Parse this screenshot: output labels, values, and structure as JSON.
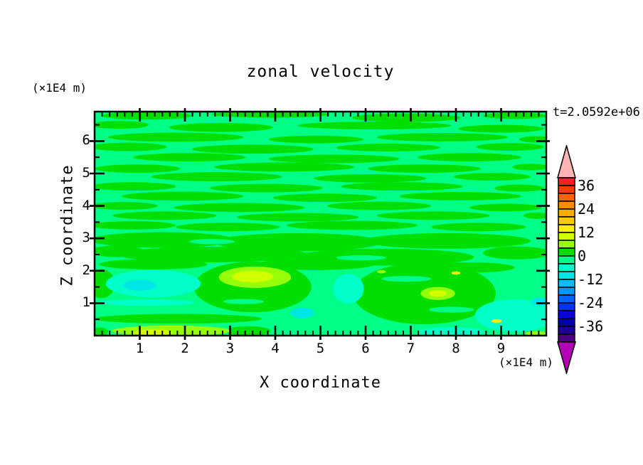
{
  "title": "zonal velocity",
  "time_annotation": "t=2.0592e+06",
  "axes": {
    "x": {
      "label": "X coordinate",
      "units": "(×1E4 m)",
      "min": 0,
      "max": 10,
      "major_ticks": [
        "1",
        "2",
        "3",
        "4",
        "5",
        "6",
        "7",
        "8",
        "9"
      ],
      "minor_step": 0.16667
    },
    "y": {
      "label": "Z coordinate",
      "units": "(×1E4 m)",
      "min": 0,
      "max": 6.907,
      "major_ticks": [
        "1",
        "2",
        "3",
        "4",
        "5",
        "6"
      ],
      "minor_step": 0.5
    }
  },
  "colorbar": {
    "over_color": "#FFB4B4",
    "under_color": "#B400B4",
    "segments": [
      "#FA1E28",
      "#FF3C00",
      "#FF6400",
      "#FF8C00",
      "#FFAA00",
      "#FFC800",
      "#FFF000",
      "#D2FF00",
      "#96FF0A",
      "#00DF00",
      "#00FF87",
      "#00FFC8",
      "#00E6E6",
      "#00BEFF",
      "#0096FF",
      "#0064FF",
      "#0032FA",
      "#0A00DC",
      "#0000AA",
      "#1E0096",
      "#4B0082"
    ],
    "labels": [
      {
        "text": "36",
        "boundary": 1
      },
      {
        "text": "24",
        "boundary": 4
      },
      {
        "text": "12",
        "boundary": 7
      },
      {
        "text": "0",
        "boundary": 10
      },
      {
        "text": "-12",
        "boundary": 13
      },
      {
        "text": "-24",
        "boundary": 16
      },
      {
        "text": "-36",
        "boundary": 19
      }
    ]
  },
  "chart_data": {
    "type": "heatmap",
    "title": "zonal velocity",
    "xlabel": "X coordinate",
    "ylabel": "Z coordinate",
    "x_units": "×1E4 m",
    "y_units": "×1E4 m",
    "time": "t=2.0592e+06",
    "xlim": [
      0,
      10
    ],
    "ylim": [
      0,
      6.907
    ],
    "contour_interval": 4,
    "labeled_levels": [
      36,
      24,
      12,
      0,
      -12,
      -24,
      -36
    ],
    "field_summary": "velocity mostly between -4 and +4; wavy horizontal alternating bands of 0..4 (green) and -4..0 (spring green) aloft; stronger negative cells (-12..-4 cyan) near z=1..2 at x=0.3-2.3, x=5.3-6.0, x=8.5-10; stronger positive cells (+4..+12 chartreuse/yellow) near z=1.8 at x=2.8-4.3 and near bottom boundary x=0.5-3, x=7.3-8",
    "palette": {
      "G": "#00DF00",
      "S": "#00FF87",
      "A": "#00FFC8",
      "C": "#00E6E6",
      "H": "#96FF0A",
      "Y": "#D2FF00",
      "YY": "#FFF000"
    },
    "background_level": "S",
    "features": [
      [
        "G",
        1.15,
        6.78,
        1.0,
        0.12
      ],
      [
        "G",
        3.9,
        6.82,
        1.3,
        0.1
      ],
      [
        "G",
        6.9,
        6.72,
        1.2,
        0.13
      ],
      [
        "G",
        9.3,
        6.78,
        0.7,
        0.1
      ],
      [
        "G",
        0.55,
        6.5,
        0.65,
        0.12
      ],
      [
        "G",
        2.8,
        6.42,
        1.15,
        0.14
      ],
      [
        "G",
        6.2,
        6.48,
        1.7,
        0.12
      ],
      [
        "G",
        9.0,
        6.38,
        0.95,
        0.12
      ],
      [
        "G",
        1.8,
        6.12,
        1.5,
        0.14
      ],
      [
        "G",
        4.9,
        6.05,
        1.05,
        0.12
      ],
      [
        "G",
        7.7,
        6.12,
        1.45,
        0.13
      ],
      [
        "G",
        9.8,
        6.05,
        0.4,
        0.1
      ],
      [
        "G",
        0.75,
        5.82,
        0.85,
        0.13
      ],
      [
        "G",
        3.5,
        5.75,
        1.35,
        0.14
      ],
      [
        "G",
        6.5,
        5.8,
        1.15,
        0.12
      ],
      [
        "G",
        9.2,
        5.82,
        0.75,
        0.12
      ],
      [
        "G",
        2.1,
        5.5,
        1.25,
        0.13
      ],
      [
        "G",
        5.3,
        5.45,
        1.45,
        0.13
      ],
      [
        "G",
        8.3,
        5.5,
        1.15,
        0.13
      ],
      [
        "G",
        0.95,
        5.15,
        0.95,
        0.13
      ],
      [
        "G",
        4.2,
        5.2,
        1.55,
        0.14
      ],
      [
        "G",
        7.3,
        5.15,
        1.25,
        0.13
      ],
      [
        "G",
        9.65,
        5.2,
        0.4,
        0.1
      ],
      [
        "G",
        2.7,
        4.9,
        1.45,
        0.14
      ],
      [
        "G",
        6.1,
        4.85,
        1.25,
        0.13
      ],
      [
        "G",
        8.8,
        4.9,
        0.85,
        0.12
      ],
      [
        "G",
        0.85,
        4.6,
        0.95,
        0.13
      ],
      [
        "G",
        3.8,
        4.55,
        1.25,
        0.13
      ],
      [
        "G",
        6.8,
        4.6,
        1.35,
        0.13
      ],
      [
        "G",
        9.4,
        4.55,
        0.55,
        0.11
      ],
      [
        "G",
        1.95,
        4.3,
        1.35,
        0.14
      ],
      [
        "G",
        5.1,
        4.25,
        1.15,
        0.13
      ],
      [
        "G",
        8.1,
        4.3,
        1.35,
        0.13
      ],
      [
        "G",
        0.65,
        4.0,
        0.75,
        0.12
      ],
      [
        "G",
        3.2,
        3.95,
        1.45,
        0.14
      ],
      [
        "G",
        6.3,
        4.0,
        1.15,
        0.13
      ],
      [
        "G",
        9.1,
        3.95,
        0.8,
        0.12
      ],
      [
        "G",
        1.55,
        3.7,
        1.15,
        0.13
      ],
      [
        "G",
        4.5,
        3.65,
        1.35,
        0.13
      ],
      [
        "G",
        7.5,
        3.7,
        1.25,
        0.13
      ],
      [
        "G",
        9.8,
        3.7,
        0.3,
        0.1
      ],
      [
        "G",
        0.85,
        3.4,
        0.95,
        0.13
      ],
      [
        "G",
        2.95,
        3.35,
        1.15,
        0.13
      ],
      [
        "G",
        5.7,
        3.4,
        1.45,
        0.14
      ],
      [
        "G",
        8.5,
        3.35,
        1.05,
        0.13
      ],
      [
        "G",
        1.5,
        2.95,
        1.6,
        0.24
      ],
      [
        "G",
        4.5,
        2.88,
        1.85,
        0.28
      ],
      [
        "G",
        7.8,
        2.92,
        1.85,
        0.24
      ],
      [
        "G",
        0.5,
        2.6,
        0.6,
        0.18
      ],
      [
        "G",
        2.6,
        2.5,
        2.1,
        0.24
      ],
      [
        "G",
        6.4,
        2.42,
        2.0,
        0.26
      ],
      [
        "G",
        9.35,
        2.55,
        0.75,
        0.2
      ],
      [
        "G",
        4.9,
        2.2,
        1.3,
        0.18
      ],
      [
        "G",
        1.3,
        2.2,
        1.2,
        0.16
      ],
      [
        "G",
        8.3,
        2.1,
        1.0,
        0.16
      ],
      [
        "G",
        3.5,
        1.5,
        1.3,
        0.78
      ],
      [
        "G",
        7.3,
        1.3,
        1.58,
        0.95
      ],
      [
        "G",
        1.85,
        0.52,
        1.85,
        0.15
      ],
      [
        "G",
        0.15,
        1.6,
        0.3,
        0.45
      ],
      [
        "G",
        3.4,
        0.14,
        0.5,
        0.15
      ],
      [
        "G",
        0.12,
        0.12,
        0.18,
        0.13
      ],
      [
        "S",
        6.9,
        1.75,
        0.55,
        0.09
      ],
      [
        "S",
        7.9,
        0.8,
        0.5,
        0.09
      ],
      [
        "S",
        3.3,
        1.05,
        0.45,
        0.08
      ],
      [
        "S",
        2.6,
        2.9,
        0.5,
        0.08
      ],
      [
        "S",
        5.9,
        2.4,
        0.55,
        0.08
      ],
      [
        "A",
        1.3,
        1.6,
        1.05,
        0.42
      ],
      [
        "A",
        1.15,
        1.02,
        1.05,
        0.1
      ],
      [
        "A",
        5.62,
        1.45,
        0.34,
        0.46
      ],
      [
        "A",
        9.3,
        0.62,
        0.88,
        0.5
      ],
      [
        "A",
        7.9,
        0.12,
        0.73,
        0.14
      ],
      [
        "C",
        1.0,
        1.55,
        0.36,
        0.17
      ],
      [
        "C",
        4.6,
        0.7,
        0.26,
        0.16
      ],
      [
        "C",
        9.87,
        1.05,
        0.2,
        0.13
      ],
      [
        "H",
        3.55,
        1.8,
        0.8,
        0.33
      ],
      [
        "H",
        1.7,
        0.15,
        1.32,
        0.16
      ],
      [
        "H",
        7.6,
        1.3,
        0.38,
        0.2
      ],
      [
        "H",
        6.35,
        1.97,
        0.1,
        0.05
      ],
      [
        "H",
        9.78,
        0.06,
        0.24,
        0.08
      ],
      [
        "Y",
        3.5,
        1.82,
        0.46,
        0.18
      ],
      [
        "Y",
        1.3,
        0.1,
        0.42,
        0.09
      ],
      [
        "Y",
        7.6,
        1.3,
        0.2,
        0.1
      ],
      [
        "YY",
        8.0,
        1.93,
        0.1,
        0.05
      ],
      [
        "YY",
        8.9,
        0.45,
        0.11,
        0.06
      ]
    ]
  }
}
